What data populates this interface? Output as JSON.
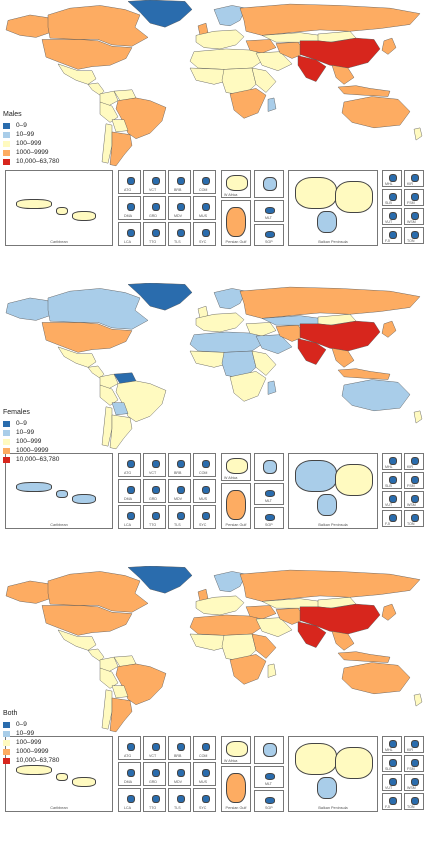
{
  "colors": {
    "c0": "#2a6cad",
    "c1": "#a9cde9",
    "c2": "#fffac0",
    "c3": "#fdac62",
    "c4": "#d7261d"
  },
  "legend_labels": [
    "0–9",
    "10–99",
    "100–999",
    "1000–9999",
    "10,000–63,780"
  ],
  "panels": [
    {
      "title": "Males",
      "regions": {
        "canada": "c3",
        "alaska": "c3",
        "greenland": "c0",
        "usa": "c3",
        "mexico": "c2",
        "central_america": "c2",
        "colombia": "c2",
        "venezuela": "c2",
        "brazil": "c3",
        "peru": "c2",
        "bolivia": "c2",
        "argentina": "c3",
        "chile": "c2",
        "west_europe": "c2",
        "uk": "c3",
        "scandinavia": "c1",
        "russia": "c3",
        "north_africa": "c2",
        "west_africa": "c2",
        "central_africa": "c2",
        "east_africa": "c2",
        "south_africa": "c3",
        "madagascar": "c1",
        "middle_east": "c3",
        "arabia": "c2",
        "iran": "c3",
        "central_asia": "c2",
        "india": "c4",
        "china": "c4",
        "mongolia": "c2",
        "se_asia": "c3",
        "indonesia": "c3",
        "japan": "c3",
        "australia": "c3",
        "nz": "c2"
      },
      "insets": {
        "caribbean": "c2",
        "small": "c0",
        "gulf": "c3",
        "balkan": "c2",
        "pacific": "c0"
      }
    },
    {
      "title": "Females",
      "regions": {
        "canada": "c1",
        "alaska": "c1",
        "greenland": "c0",
        "usa": "c3",
        "mexico": "c2",
        "central_america": "c2",
        "colombia": "c2",
        "venezuela": "c0",
        "brazil": "c2",
        "peru": "c2",
        "bolivia": "c1",
        "argentina": "c2",
        "chile": "c2",
        "west_europe": "c2",
        "uk": "c2",
        "scandinavia": "c1",
        "russia": "c3",
        "north_africa": "c1",
        "west_africa": "c2",
        "central_africa": "c1",
        "east_africa": "c2",
        "south_africa": "c2",
        "madagascar": "c1",
        "middle_east": "c2",
        "arabia": "c1",
        "iran": "c3",
        "central_asia": "c1",
        "india": "c4",
        "china": "c4",
        "mongolia": "c2",
        "se_asia": "c3",
        "indonesia": "c3",
        "japan": "c3",
        "australia": "c1",
        "nz": "c2"
      },
      "insets": {
        "caribbean": "c1",
        "small": "c0",
        "gulf": "c3",
        "balkan": "c1",
        "pacific": "c0"
      }
    },
    {
      "title": "Both",
      "regions": {
        "canada": "c3",
        "alaska": "c3",
        "greenland": "c0",
        "usa": "c3",
        "mexico": "c2",
        "central_america": "c2",
        "colombia": "c2",
        "venezuela": "c2",
        "brazil": "c3",
        "peru": "c2",
        "bolivia": "c2",
        "argentina": "c3",
        "chile": "c2",
        "west_europe": "c2",
        "uk": "c3",
        "scandinavia": "c1",
        "russia": "c3",
        "north_africa": "c3",
        "west_africa": "c2",
        "central_africa": "c2",
        "east_africa": "c3",
        "south_africa": "c3",
        "madagascar": "c2",
        "middle_east": "c3",
        "arabia": "c2",
        "iran": "c3",
        "central_asia": "c2",
        "india": "c4",
        "china": "c4",
        "mongolia": "c2",
        "se_asia": "c3",
        "indonesia": "c3",
        "japan": "c3",
        "australia": "c3",
        "nz": "c2"
      },
      "insets": {
        "caribbean": "c2",
        "small": "c0",
        "gulf": "c3",
        "balkan": "c2",
        "pacific": "c0"
      }
    }
  ],
  "inset_labels": {
    "caribbean": "Caribbean",
    "w_africa": "W Africa",
    "gulf": "Persian Gulf",
    "balkan": "Balkan Peninsula",
    "codes": [
      "ATG",
      "VCT",
      "BRB",
      "COM",
      "DMA",
      "GRD",
      "MDV",
      "MUS",
      "LCA",
      "TTO",
      "TLS",
      "SYC",
      "MLT",
      "SGP",
      "MHL",
      "KIR",
      "SLB",
      "FSM",
      "VUT",
      "WSM",
      "FJI",
      "TON"
    ]
  }
}
